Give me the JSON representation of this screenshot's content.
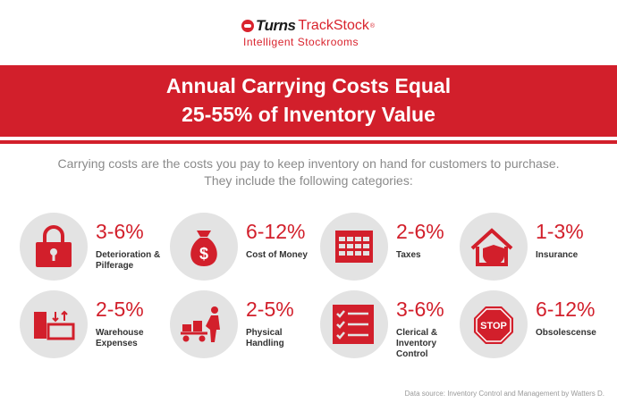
{
  "logo": {
    "brand": "Turns",
    "product": "TrackStock",
    "reg": "®",
    "tagline": "Intelligent Stockrooms"
  },
  "banner": {
    "line1": "Annual Carrying Costs Equal",
    "line2": "25-55% of Inventory Value"
  },
  "intro": {
    "line1": "Carrying costs are the costs you pay to keep inventory on hand for customers to purchase.",
    "line2": "They include the following categories:"
  },
  "categories": [
    {
      "range": "3-6%",
      "label": "Deterioration & Pilferage",
      "icon": "padlock-icon"
    },
    {
      "range": "6-12%",
      "label": "Cost of Money",
      "icon": "money-bag-icon"
    },
    {
      "range": "2-6%",
      "label": "Taxes",
      "icon": "calendar-grid-icon"
    },
    {
      "range": "1-3%",
      "label": "Insurance",
      "icon": "house-shield-icon"
    },
    {
      "range": "2-5%",
      "label": "Warehouse Expenses",
      "icon": "warehouse-boxes-icon"
    },
    {
      "range": "2-5%",
      "label": "Physical Handling",
      "icon": "hand-truck-worker-icon"
    },
    {
      "range": "3-6%",
      "label": "Clerical & Inventory Control",
      "icon": "checklist-icon"
    },
    {
      "range": "6-12%",
      "label": "Obsolescense",
      "icon": "stop-sign-icon"
    }
  ],
  "colors": {
    "accent": "#d21f2b",
    "circle": "#e3e3e3"
  },
  "source": "Data source: Inventory Control and Management by Watters D."
}
